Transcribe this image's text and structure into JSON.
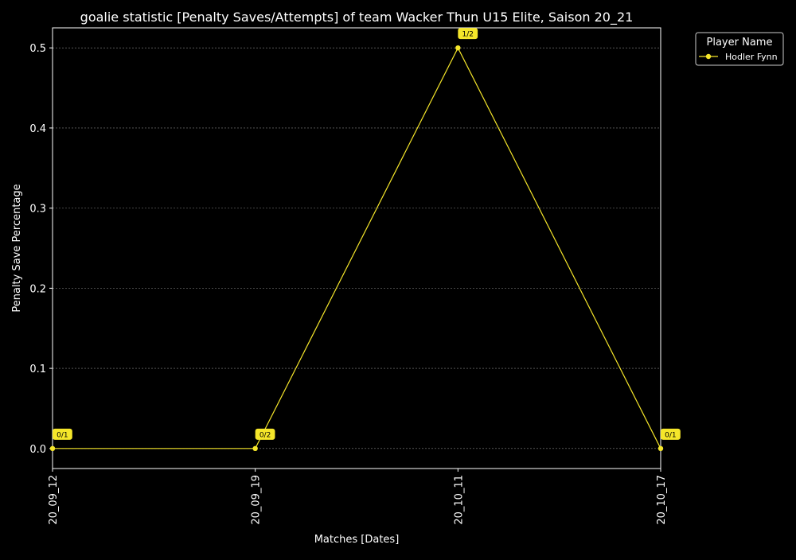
{
  "chart_data": {
    "type": "line",
    "title": "goalie statistic [Penalty Saves/Attempts] of team Wacker Thun U15 Elite, Saison 20_21",
    "xlabel": "Matches [Dates]",
    "ylabel": "Penalty Save Percentage",
    "categories": [
      "20_09_12",
      "20_09_19",
      "20_10_11",
      "20_10_17"
    ],
    "yticks": [
      "0.0",
      "0.1",
      "0.2",
      "0.3",
      "0.4",
      "0.5"
    ],
    "ylim": [
      -0.025,
      0.525
    ],
    "grid": true,
    "legend": {
      "title": "Player Name",
      "placement": "outside-top-right"
    },
    "series": [
      {
        "name": "Hodler Fynn",
        "values": [
          0.0,
          0.0,
          0.5,
          0.0
        ],
        "labels": [
          "0/1",
          "0/2",
          "1/2",
          "0/1"
        ],
        "color": "#f5e62a"
      }
    ]
  }
}
